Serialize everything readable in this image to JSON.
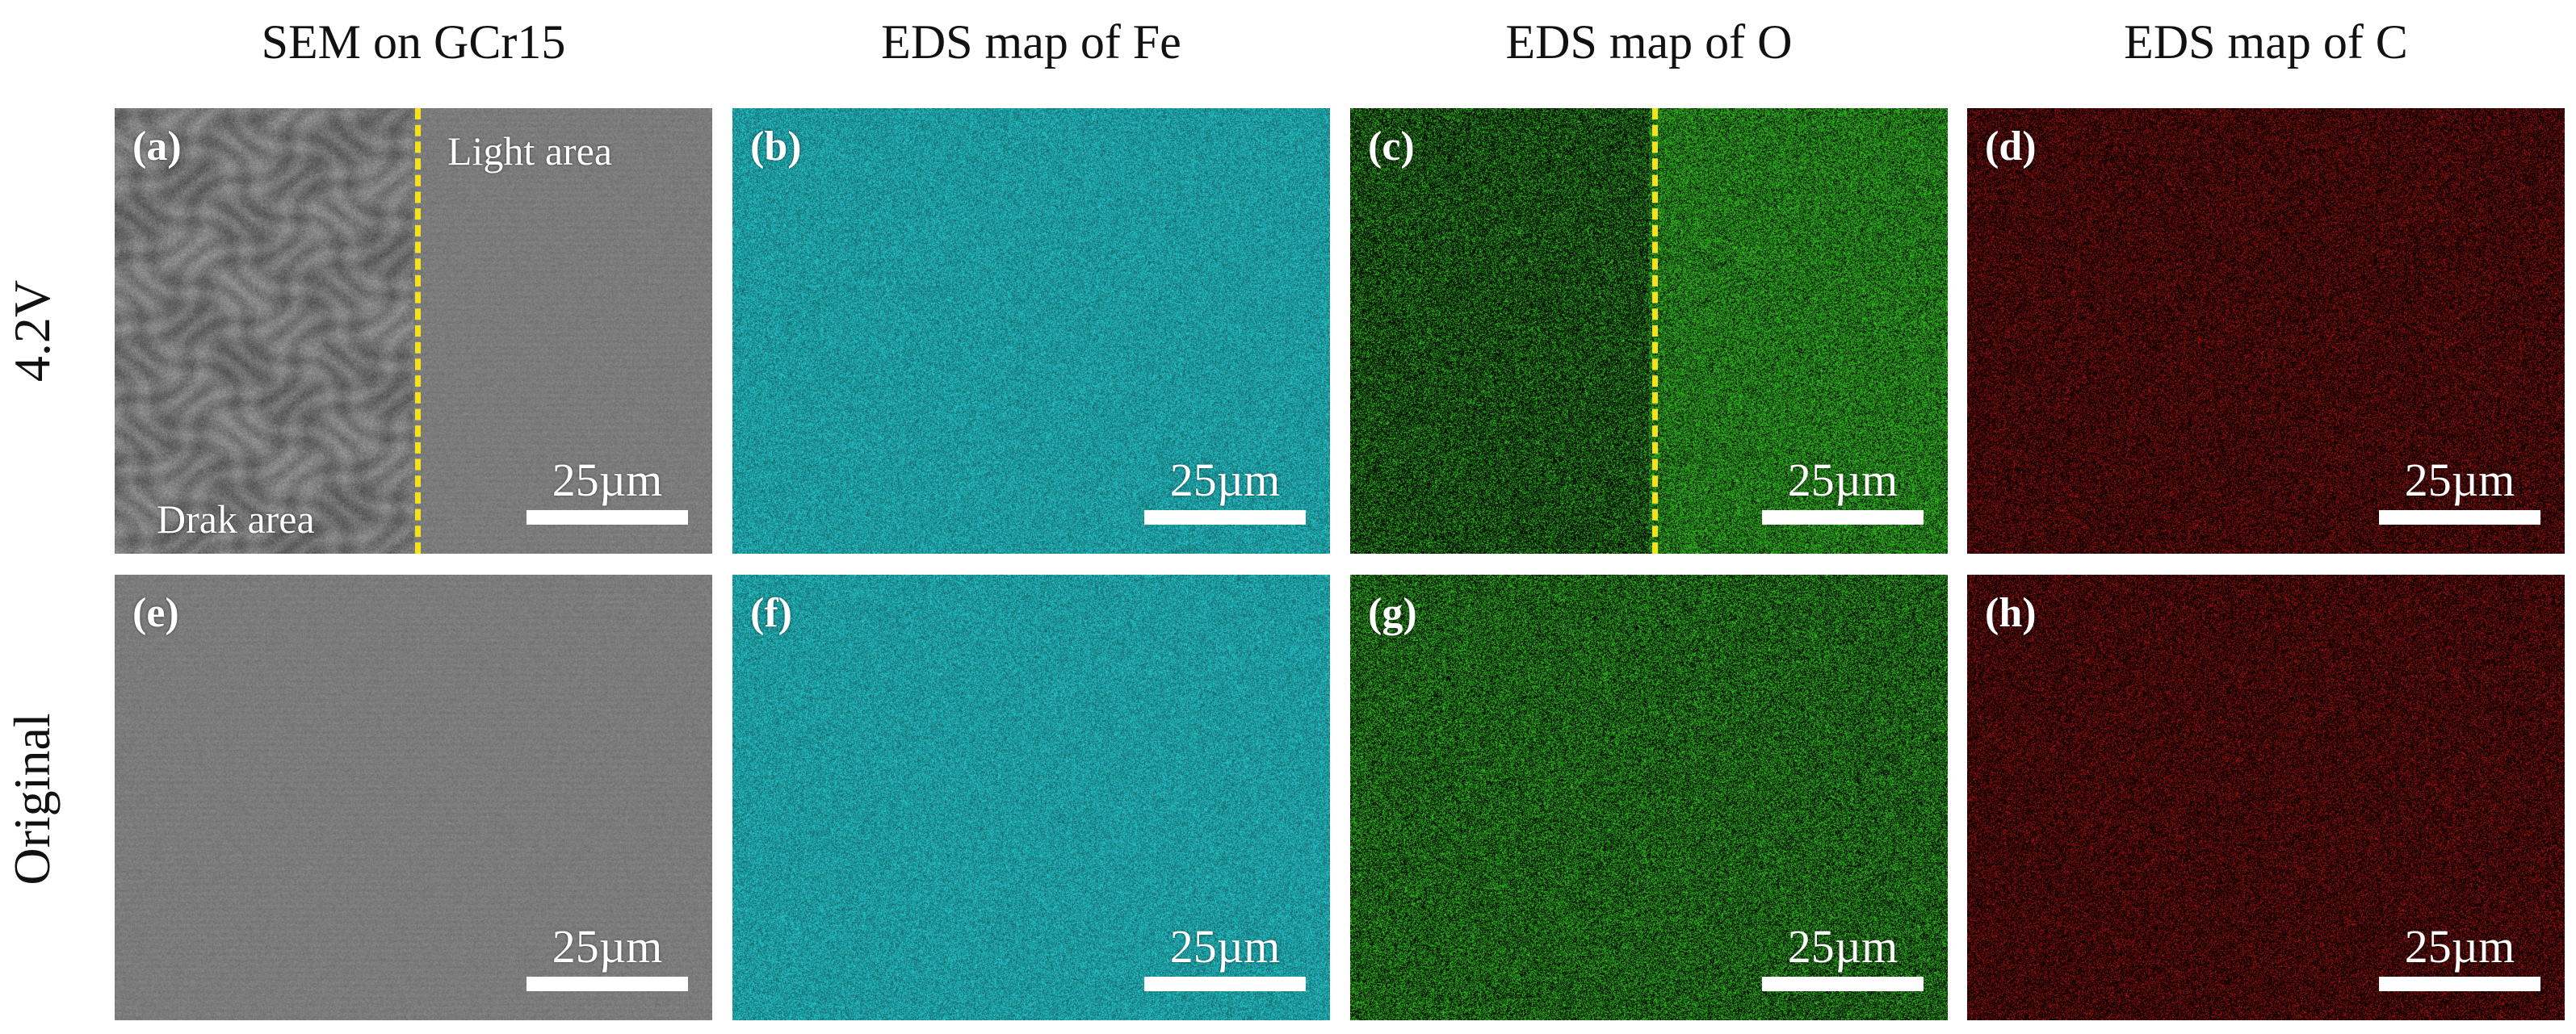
{
  "columns": [
    "SEM on GCr15",
    "EDS map of Fe",
    "EDS map of O",
    "EDS map of C"
  ],
  "rows": [
    "4.2V",
    "Original"
  ],
  "panels": {
    "a": {
      "label": "(a)",
      "scale": "25µm",
      "light": "Light area",
      "dark": "Drak area"
    },
    "b": {
      "label": "(b)",
      "scale": "25µm"
    },
    "c": {
      "label": "(c)",
      "scale": "25µm"
    },
    "d": {
      "label": "(d)",
      "scale": "25µm"
    },
    "e": {
      "label": "(e)",
      "scale": "25µm"
    },
    "f": {
      "label": "(f)",
      "scale": "25µm"
    },
    "g": {
      "label": "(g)",
      "scale": "25µm"
    },
    "h": {
      "label": "(h)",
      "scale": "25µm"
    }
  },
  "colors": {
    "sem_gray": "#7a7a7a",
    "fe_cyan": "#22b3b8",
    "o_green": "#2fae1f",
    "c_red": "#8a1212",
    "dash_yellow": "#f5e21c"
  }
}
